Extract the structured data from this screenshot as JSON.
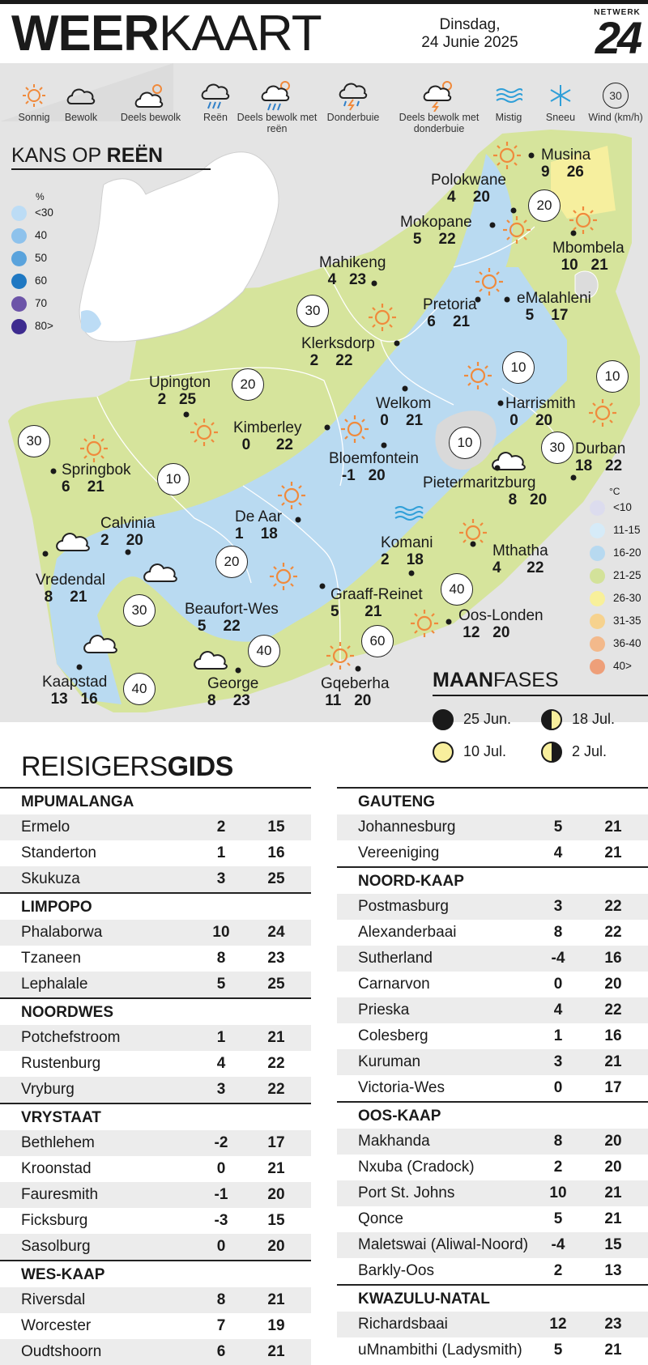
{
  "header": {
    "title_bold": "WEER",
    "title_light": "KAART",
    "date_line1": "Dinsdag,",
    "date_line2": "24 Junie 2025",
    "logo_top": "NETWERK",
    "logo_num": "24"
  },
  "legend": [
    {
      "label": "Sonnig",
      "icon": "sun-icon"
    },
    {
      "label": "Bewolk",
      "icon": "cloud-icon"
    },
    {
      "label": "Deels bewolk",
      "icon": "partly-cloudy-icon"
    },
    {
      "label": "Reën",
      "icon": "rain-icon"
    },
    {
      "label": "Deels bewolk met reën",
      "icon": "partly-cloudy-rain-icon"
    },
    {
      "label": "Donderbuie",
      "icon": "thunderstorm-icon"
    },
    {
      "label": "Deels bewolk met donderbuie",
      "icon": "partly-cloudy-thunder-icon"
    },
    {
      "label": "Mistig",
      "icon": "fog-icon"
    },
    {
      "label": "Sneeu",
      "icon": "snow-icon"
    },
    {
      "label": "Wind (km/h)",
      "icon": "wind-icon",
      "value": "30"
    }
  ],
  "rain": {
    "title_light": "KANS OP ",
    "title_bold": "REËN",
    "unit": "%",
    "levels": [
      {
        "label": "<30",
        "color": "#bcdcf5"
      },
      {
        "label": "40",
        "color": "#8ec2ec"
      },
      {
        "label": "50",
        "color": "#5aa3dc"
      },
      {
        "label": "60",
        "color": "#1f78c2"
      },
      {
        "label": "70",
        "color": "#6c54a8"
      },
      {
        "label": "80>",
        "color": "#3d2b8f"
      }
    ]
  },
  "temp_legend": {
    "unit": "°C",
    "levels": [
      {
        "label": "<10",
        "color": "#dcdcee"
      },
      {
        "label": "11-15",
        "color": "#d6ebf8"
      },
      {
        "label": "16-20",
        "color": "#b7d9f0"
      },
      {
        "label": "21-25",
        "color": "#d3e29a"
      },
      {
        "label": "26-30",
        "color": "#f8f09a"
      },
      {
        "label": "31-35",
        "color": "#f6d28e"
      },
      {
        "label": "36-40",
        "color": "#f3b98b"
      },
      {
        "label": "40>",
        "color": "#ee9f79"
      }
    ]
  },
  "cities": [
    {
      "name": "Musina",
      "min": "9",
      "max": "26"
    },
    {
      "name": "Polokwane",
      "min": "4",
      "max": "20"
    },
    {
      "name": "Mokopane",
      "min": "5",
      "max": "22"
    },
    {
      "name": "Mbombela",
      "min": "10",
      "max": "21"
    },
    {
      "name": "Mahikeng",
      "min": "4",
      "max": "23"
    },
    {
      "name": "Pretoria",
      "min": "6",
      "max": "21"
    },
    {
      "name": "eMalahleni",
      "min": "5",
      "max": "17"
    },
    {
      "name": "Klerksdorp",
      "min": "2",
      "max": "22"
    },
    {
      "name": "Upington",
      "min": "2",
      "max": "25"
    },
    {
      "name": "Welkom",
      "min": "0",
      "max": "21"
    },
    {
      "name": "Harrismith",
      "min": "0",
      "max": "20"
    },
    {
      "name": "Kimberley",
      "min": "0",
      "max": "22"
    },
    {
      "name": "Bloemfontein",
      "min": "-1",
      "max": "20"
    },
    {
      "name": "Durban",
      "min": "18",
      "max": "22"
    },
    {
      "name": "Springbok",
      "min": "6",
      "max": "21"
    },
    {
      "name": "Pietermaritzburg",
      "min": "8",
      "max": "20"
    },
    {
      "name": "De Aar",
      "min": "1",
      "max": "18"
    },
    {
      "name": "Calvinia",
      "min": "2",
      "max": "20"
    },
    {
      "name": "Komani",
      "min": "2",
      "max": "18"
    },
    {
      "name": "Mthatha",
      "min": "4",
      "max": "22"
    },
    {
      "name": "Vredendal",
      "min": "8",
      "max": "21"
    },
    {
      "name": "Graaff-Reinet",
      "min": "5",
      "max": "21"
    },
    {
      "name": "Beaufort-Wes",
      "min": "5",
      "max": "22"
    },
    {
      "name": "Oos-Londen",
      "min": "12",
      "max": "20"
    },
    {
      "name": "Kaapstad",
      "min": "13",
      "max": "16"
    },
    {
      "name": "George",
      "min": "8",
      "max": "23"
    },
    {
      "name": "Gqeberha",
      "min": "11",
      "max": "20"
    }
  ],
  "winds": [
    "20",
    "30",
    "10",
    "20",
    "10",
    "30",
    "10",
    "30",
    "10",
    "30",
    "20",
    "40",
    "40",
    "60",
    "40"
  ],
  "moon": {
    "title_bold": "MAAN",
    "title_light": "FASES",
    "phases": [
      {
        "date": "25 Jun.",
        "phase": "new-moon"
      },
      {
        "date": "18 Jul.",
        "phase": "first-quarter"
      },
      {
        "date": "10 Jul.",
        "phase": "full-moon"
      },
      {
        "date": "2 Jul.",
        "phase": "last-quarter"
      }
    ]
  },
  "gids": {
    "title_light": "REISIGERS",
    "title_bold": "GIDS",
    "left": [
      {
        "province": "MPUMALANGA",
        "rows": [
          [
            "Ermelo",
            "2",
            "15"
          ],
          [
            "Standerton",
            "1",
            "16"
          ],
          [
            "Skukuza",
            "3",
            "25"
          ]
        ]
      },
      {
        "province": "LIMPOPO",
        "rows": [
          [
            "Phalaborwa",
            "10",
            "24"
          ],
          [
            "Tzaneen",
            "8",
            "23"
          ],
          [
            "Lephalale",
            "5",
            "25"
          ]
        ]
      },
      {
        "province": "NOORDWES",
        "rows": [
          [
            "Potchefstroom",
            "1",
            "21"
          ],
          [
            "Rustenburg",
            "4",
            "22"
          ],
          [
            "Vryburg",
            "3",
            "22"
          ]
        ]
      },
      {
        "province": "VRYSTAAT",
        "rows": [
          [
            "Bethlehem",
            "-2",
            "17"
          ],
          [
            "Kroonstad",
            "0",
            "21"
          ],
          [
            "Fauresmith",
            "-1",
            "20"
          ],
          [
            "Ficksburg",
            "-3",
            "15"
          ],
          [
            "Sasolburg",
            "0",
            "20"
          ]
        ]
      },
      {
        "province": "WES-KAAP",
        "rows": [
          [
            "Riversdal",
            "8",
            "21"
          ],
          [
            "Worcester",
            "7",
            "19"
          ],
          [
            "Oudtshoorn",
            "6",
            "21"
          ]
        ]
      }
    ],
    "right": [
      {
        "province": "GAUTENG",
        "rows": [
          [
            "Johannesburg",
            "5",
            "21"
          ],
          [
            "Vereeniging",
            "4",
            "21"
          ]
        ]
      },
      {
        "province": "NOORD-KAAP",
        "rows": [
          [
            "Postmasburg",
            "3",
            "22"
          ],
          [
            "Alexanderbaai",
            "8",
            "22"
          ],
          [
            "Sutherland",
            "-4",
            "16"
          ],
          [
            "Carnarvon",
            "0",
            "20"
          ],
          [
            "Prieska",
            "4",
            "22"
          ],
          [
            "Colesberg",
            "1",
            "16"
          ],
          [
            "Kuruman",
            "3",
            "21"
          ],
          [
            "Victoria-Wes",
            "0",
            "17"
          ]
        ]
      },
      {
        "province": "OOS-KAAP",
        "rows": [
          [
            "Makhanda",
            "8",
            "20"
          ],
          [
            "Nxuba (Cradock)",
            "2",
            "20"
          ],
          [
            "Port St. Johns",
            "10",
            "21"
          ],
          [
            "Qonce",
            "5",
            "21"
          ],
          [
            "Maletswai (Aliwal-Noord)",
            "-4",
            "15"
          ],
          [
            "Barkly-Oos",
            "2",
            "13"
          ]
        ]
      },
      {
        "province": "KWAZULU-NATAL",
        "rows": [
          [
            "Richardsbaai",
            "12",
            "23"
          ],
          [
            "uMnambithi (Ladysmith)",
            "5",
            "21"
          ]
        ]
      }
    ]
  }
}
